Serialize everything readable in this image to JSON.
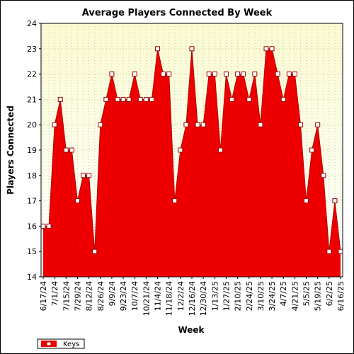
{
  "chart_data": {
    "type": "area",
    "title": "Average Players Connected By Week",
    "xlabel": "Week",
    "ylabel": "Players Connected",
    "ylim": [
      14,
      24
    ],
    "yticks": [
      14,
      15,
      16,
      17,
      18,
      19,
      20,
      21,
      22,
      23,
      24
    ],
    "grid": true,
    "legend_placement": "bottom-left",
    "x": [
      "6/17/24",
      "6/24/24",
      "7/1/24",
      "7/8/24",
      "7/15/24",
      "7/22/24",
      "7/29/24",
      "8/5/24",
      "8/12/24",
      "8/19/24",
      "8/26/24",
      "9/2/24",
      "9/9/24",
      "9/16/24",
      "9/23/24",
      "9/30/24",
      "10/7/24",
      "10/14/24",
      "10/21/24",
      "10/28/24",
      "11/4/24",
      "11/11/24",
      "11/18/24",
      "11/25/24",
      "12/2/24",
      "12/9/24",
      "12/16/24",
      "12/23/24",
      "12/30/24",
      "1/6/25",
      "1/13/25",
      "1/20/25",
      "1/27/25",
      "2/3/25",
      "2/10/25",
      "2/17/25",
      "2/24/25",
      "3/3/25",
      "3/10/25",
      "3/17/25",
      "3/24/25",
      "3/31/25",
      "4/7/25",
      "4/14/25",
      "4/21/25",
      "4/28/25",
      "5/5/25",
      "5/12/25",
      "5/19/25",
      "5/26/25",
      "6/2/25",
      "6/9/25",
      "6/16/25"
    ],
    "xtick_labels": [
      "6/17/24",
      "7/1/24",
      "7/15/24",
      "7/29/24",
      "8/12/24",
      "8/26/24",
      "9/9/24",
      "9/23/24",
      "10/7/24",
      "10/21/24",
      "11/4/24",
      "11/18/24",
      "12/2/24",
      "12/16/24",
      "12/30/24",
      "1/13/25",
      "1/27/25",
      "2/10/25",
      "2/24/25",
      "3/10/25",
      "3/24/25",
      "4/7/25",
      "4/21/25",
      "5/5/25",
      "5/19/25",
      "6/2/25",
      "6/16/25"
    ],
    "series": [
      {
        "name": "Keys",
        "color": "#ee0000",
        "values": [
          16,
          16,
          20,
          21,
          19,
          19,
          17,
          18,
          18,
          15,
          20,
          21,
          22,
          21,
          21,
          21,
          22,
          21,
          21,
          21,
          23,
          22,
          22,
          17,
          19,
          20,
          23,
          20,
          20,
          22,
          22,
          19,
          22,
          21,
          22,
          22,
          21,
          22,
          20,
          23,
          23,
          22,
          21,
          22,
          22,
          20,
          17,
          19,
          20,
          18,
          15,
          17,
          15
        ]
      }
    ]
  },
  "colors": {
    "plot_bg_top": "#fafad2",
    "plot_bg_bottom": "#ffffff",
    "grid": "#c8c8a0",
    "fill": "#ee0000",
    "line": "#b00000",
    "marker_fill": "#ffffff"
  }
}
